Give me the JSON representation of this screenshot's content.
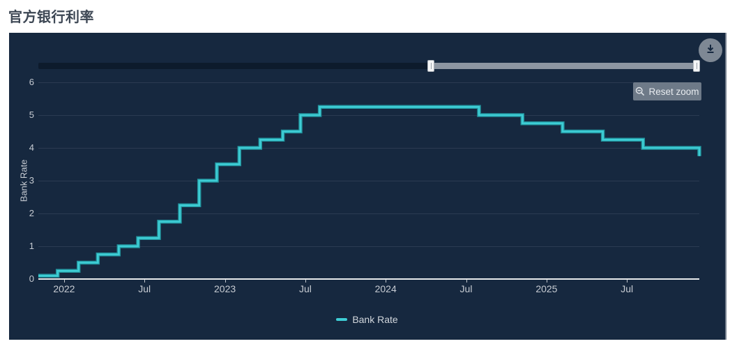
{
  "header": {
    "title": "官方银行利率"
  },
  "buttons": {
    "reset_zoom_label": "Reset zoom",
    "reset_zoom_icon": "zoom-out-magnifier-icon",
    "download_icon": "download-icon"
  },
  "colors": {
    "panel_background": "#16283f",
    "line": "#3ecdd5",
    "line_edge": "#22929c",
    "gridline": "#2b3b52",
    "axis_line": "#e8eaec",
    "tick_label": "#c6cbd2",
    "navigator_unselected": "#0d1b2c",
    "navigator_selected": "#8d96a2",
    "reset_zoom_background": "#6e7a88",
    "download_background": "#7e8894"
  },
  "chart_data": {
    "type": "line",
    "step": true,
    "title": "官方银行利率",
    "xlabel": "",
    "ylabel": "Bank Rate",
    "grid": "horizontal",
    "legend_position": "bottom-center",
    "xlim": [
      2021.84,
      2025.95
    ],
    "ylim": [
      0,
      6
    ],
    "yticks": [
      0,
      1,
      2,
      3,
      4,
      5,
      6
    ],
    "xticks": [
      {
        "v": 2022.0,
        "label": "2022"
      },
      {
        "v": 2022.5,
        "label": "Jul"
      },
      {
        "v": 2023.0,
        "label": "2023"
      },
      {
        "v": 2023.5,
        "label": "Jul"
      },
      {
        "v": 2024.0,
        "label": "2024"
      },
      {
        "v": 2024.5,
        "label": "Jul"
      },
      {
        "v": 2025.0,
        "label": "2025"
      },
      {
        "v": 2025.5,
        "label": "Jul"
      }
    ],
    "series": [
      {
        "name": "Bank Rate",
        "color": "#3ecdd5",
        "points": [
          [
            2021.84,
            0.1
          ],
          [
            2021.96,
            0.25
          ],
          [
            2022.09,
            0.5
          ],
          [
            2022.21,
            0.75
          ],
          [
            2022.34,
            1.0
          ],
          [
            2022.46,
            1.25
          ],
          [
            2022.59,
            1.75
          ],
          [
            2022.72,
            2.25
          ],
          [
            2022.84,
            3.0
          ],
          [
            2022.95,
            3.5
          ],
          [
            2023.09,
            4.0
          ],
          [
            2023.22,
            4.25
          ],
          [
            2023.36,
            4.5
          ],
          [
            2023.47,
            5.0
          ],
          [
            2023.59,
            5.25
          ],
          [
            2024.58,
            5.0
          ],
          [
            2024.85,
            4.75
          ],
          [
            2025.1,
            4.5
          ],
          [
            2025.35,
            4.25
          ],
          [
            2025.6,
            4.0
          ],
          [
            2025.95,
            3.75
          ]
        ]
      }
    ]
  }
}
